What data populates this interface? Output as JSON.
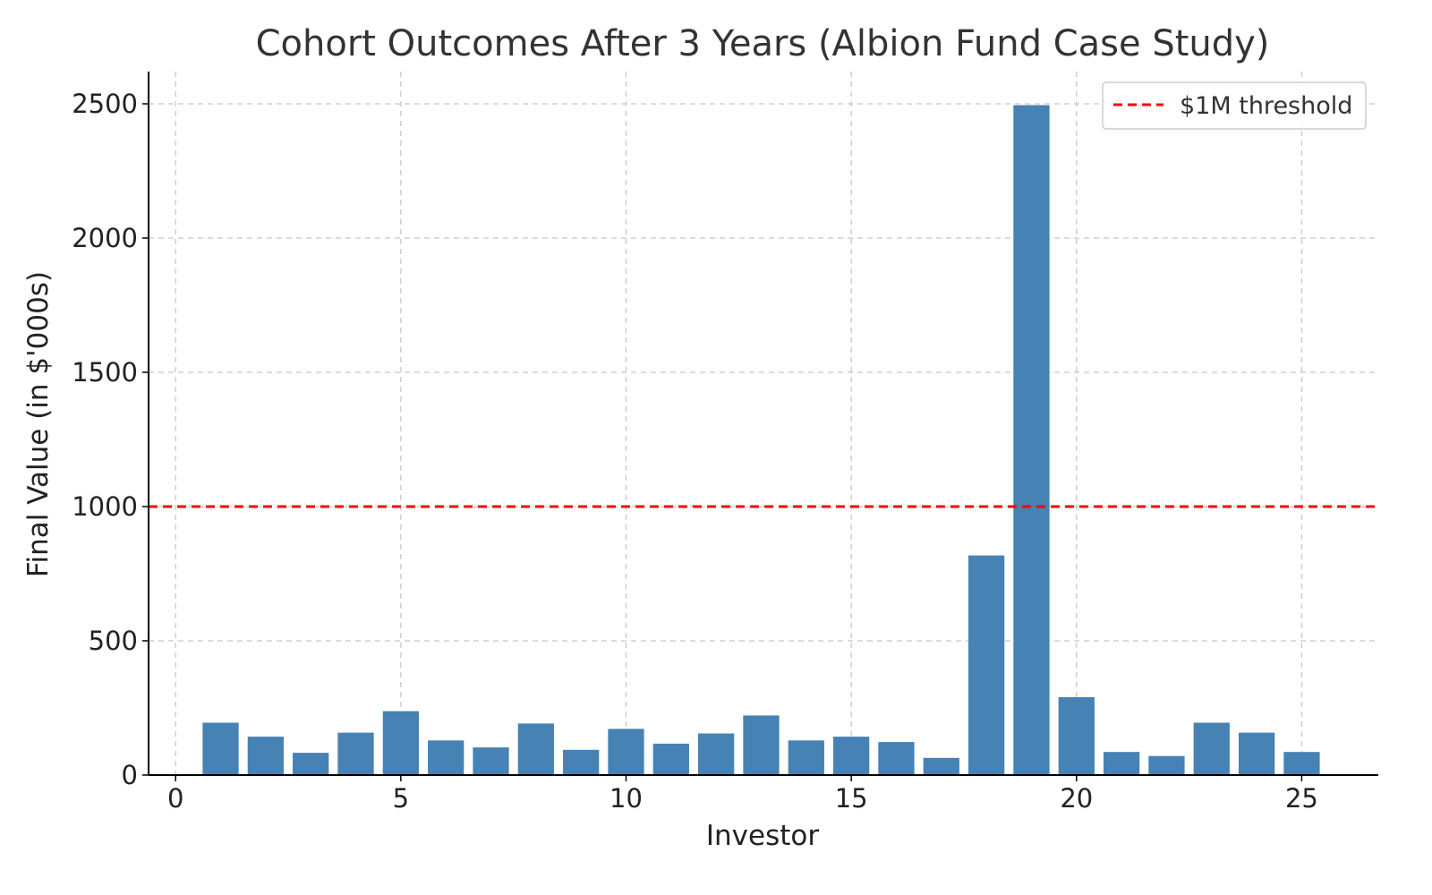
{
  "chart_data": {
    "type": "bar",
    "title": "Cohort Outcomes After 3 Years (Albion Fund Case Study)",
    "xlabel": "Investor",
    "ylabel": "Final Value (in $'000s)",
    "x": [
      1,
      2,
      3,
      4,
      5,
      6,
      7,
      8,
      9,
      10,
      11,
      12,
      13,
      14,
      15,
      16,
      17,
      18,
      19,
      20,
      21,
      22,
      23,
      24,
      25
    ],
    "values": [
      195,
      143,
      83,
      158,
      238,
      129,
      103,
      192,
      94,
      172,
      117,
      155,
      222,
      129,
      143,
      123,
      64,
      818,
      2495,
      290,
      86,
      71,
      195,
      158,
      86
    ],
    "bar_color": "#4682b4",
    "xlim": [
      -0.6,
      26.7
    ],
    "ylim": [
      0,
      2620
    ],
    "xticks": [
      0,
      5,
      10,
      15,
      20,
      25
    ],
    "yticks": [
      0,
      500,
      1000,
      1500,
      2000,
      2500
    ],
    "grid": true,
    "threshold": {
      "value": 1000,
      "label": "$1M threshold",
      "color": "#ff0000",
      "style": "dashed"
    },
    "legend_position": "top-right"
  }
}
